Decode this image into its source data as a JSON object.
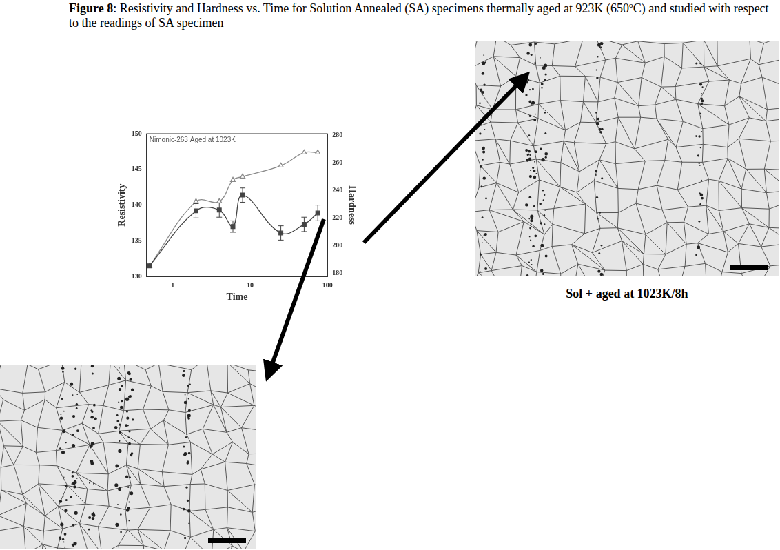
{
  "caption": {
    "label": "Figure 8",
    "text": ": Resistivity and Hardness vs. Time for Solution Annealed (SA) specimens thermally aged at 923K (650ºC) and studied with respect to the readings of SA specimen"
  },
  "image_captions": [
    "Sol + aged at 1023K/8h"
  ],
  "chart_data": {
    "type": "line",
    "title": "Nimonic-263 Aged at 1023K",
    "x_label": "Time",
    "y_label": "Resistivity",
    "y2_label": "Hardness",
    "log": "x",
    "grid": false,
    "xlim": [
      0.46,
      100
    ],
    "xticks": [
      1,
      10,
      100
    ],
    "ylim": [
      130,
      150
    ],
    "yticks": [
      130,
      135,
      140,
      145,
      150
    ],
    "y2lim": [
      177.5,
      281.25
    ],
    "y2ticks": [
      180,
      200,
      220,
      240,
      260,
      280
    ],
    "x": [
      0.5,
      2,
      4,
      6,
      8,
      25,
      50,
      75
    ],
    "series": [
      {
        "color": "#444444",
        "marker": "square",
        "values": [
          131.5,
          139.2,
          139.3,
          137.0,
          141.4,
          136.1,
          137.3,
          138.9
        ],
        "errors": [
          null,
          1.0,
          1.0,
          0.8,
          1.0,
          1.0,
          1.0,
          1.1
        ]
      },
      {
        "axis": "y2",
        "color": "#8a8a8a",
        "marker": "triangle",
        "values": [
          185,
          232,
          232,
          247.5,
          250,
          258,
          267.5,
          267.5
        ]
      }
    ]
  }
}
